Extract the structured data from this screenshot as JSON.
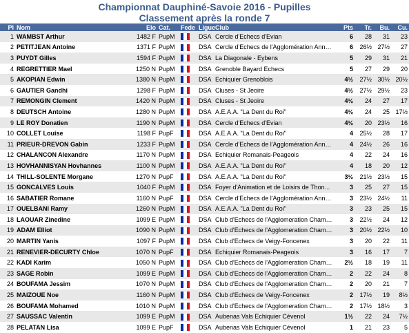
{
  "title": "Championnat Dauphiné-Savoie 2016 - Pupilles",
  "subtitle": "Classement après la ronde 7",
  "columns": [
    "Pl",
    "Nom",
    "Elo",
    "Cat.",
    "Fede",
    "Ligue",
    "Club",
    "Pts",
    "Tr.",
    "Bu.",
    "Cu."
  ],
  "flag_colors": [
    "#0a2a9e",
    "#ffffff",
    "#d9121f"
  ],
  "rows": [
    {
      "pl": "1",
      "nom": "WAMBST Arthur",
      "elo": "1482 F",
      "cat": "PupM",
      "ligue": "DSA",
      "club": "Cercle d'Echecs d'Evian",
      "pts": "6",
      "tr": "28",
      "bu": "31",
      "cu": "23"
    },
    {
      "pl": "2",
      "nom": "PETITJEAN Antoine",
      "elo": "1371 F",
      "cat": "PupM",
      "ligue": "DSA",
      "club": "Cercle d'Echecs de l'Agglomération Anné...",
      "pts": "6",
      "tr": "26½",
      "bu": "27½",
      "cu": "27"
    },
    {
      "pl": "3",
      "nom": "PUYDT Gilles",
      "elo": "1594 F",
      "cat": "PupM",
      "ligue": "DSA",
      "club": "La Diagonale - Eybens",
      "pts": "5",
      "tr": "29",
      "bu": "31",
      "cu": "21"
    },
    {
      "pl": "4",
      "nom": "REGRETTIER Mael",
      "elo": "1250 N",
      "cat": "PupM",
      "ligue": "DSA",
      "club": "Grenoble Bayard Echecs",
      "pts": "5",
      "tr": "27",
      "bu": "29",
      "cu": "20"
    },
    {
      "pl": "5",
      "nom": "AKOPIAN Edwin",
      "elo": "1380 N",
      "cat": "PupM",
      "ligue": "DSA",
      "club": "Echiquier Grenoblois",
      "pts": "4½",
      "tr": "27½",
      "bu": "30½",
      "cu": "20½"
    },
    {
      "pl": "6",
      "nom": "GAUTIER Gandhi",
      "elo": "1298 F",
      "cat": "PupM",
      "ligue": "DSA",
      "club": "Cluses - St Jeoire",
      "pts": "4½",
      "tr": "27½",
      "bu": "29½",
      "cu": "23"
    },
    {
      "pl": "7",
      "nom": "REMONGIN Clement",
      "elo": "1420 N",
      "cat": "PupM",
      "ligue": "DSA",
      "club": "Cluses - St Jeoire",
      "pts": "4½",
      "tr": "24",
      "bu": "27",
      "cu": "17"
    },
    {
      "pl": "8",
      "nom": "DEUTSCH Antoine",
      "elo": "1280 N",
      "cat": "PupM",
      "ligue": "DSA",
      "club": "A.E.A.A. \"La Dent du Roi\"",
      "pts": "4½",
      "tr": "24",
      "bu": "25",
      "cu": "17½"
    },
    {
      "pl": "9",
      "nom": "LE ROY Donatien",
      "elo": "1190 N",
      "cat": "PupM",
      "ligue": "DSA",
      "club": "Cercle d'Echecs d'Evian",
      "pts": "4½",
      "tr": "20",
      "bu": "23½",
      "cu": "16"
    },
    {
      "pl": "10",
      "nom": "COLLET Louise",
      "elo": "1198 F",
      "cat": "PupF",
      "ligue": "DSA",
      "club": "A.E.A.A. \"La Dent du Roi\"",
      "pts": "4",
      "tr": "25½",
      "bu": "28",
      "cu": "17"
    },
    {
      "pl": "11",
      "nom": "PRIEUR-DREVON Gabin",
      "elo": "1233 F",
      "cat": "PupM",
      "ligue": "DSA",
      "club": "Cercle d'Echecs de l'Agglomération Anné...",
      "pts": "4",
      "tr": "24½",
      "bu": "26",
      "cu": "16"
    },
    {
      "pl": "12",
      "nom": "CHALANCON Alexandre",
      "elo": "1170 N",
      "cat": "PupM",
      "ligue": "DSA",
      "club": "Echiquier Romanais-Peageois",
      "pts": "4",
      "tr": "22",
      "bu": "24",
      "cu": "16"
    },
    {
      "pl": "13",
      "nom": "HOVHANNISYAN Hovhannes",
      "elo": "1100 N",
      "cat": "PupM",
      "ligue": "DSA",
      "club": "A.E.A.A. \"La Dent du Roi\"",
      "pts": "4",
      "tr": "18",
      "bu": "20",
      "cu": "12"
    },
    {
      "pl": "14",
      "nom": "THILL-SOLENTE Morgane",
      "elo": "1270 N",
      "cat": "PupF",
      "ligue": "DSA",
      "club": "A.E.A.A. \"La Dent du Roi\"",
      "pts": "3½",
      "tr": "21½",
      "bu": "23½",
      "cu": "15"
    },
    {
      "pl": "15",
      "nom": "GONCALVES Louis",
      "elo": "1040 F",
      "cat": "PupM",
      "ligue": "DSA",
      "club": "Foyer d'Animation et de Loisirs de Thon...",
      "pts": "3",
      "tr": "25",
      "bu": "27",
      "cu": "15"
    },
    {
      "pl": "16",
      "nom": "SABATIER Romane",
      "elo": "1160 N",
      "cat": "PupF",
      "ligue": "DSA",
      "club": "Cercle d'Echecs de l'Agglomération Anné...",
      "pts": "3",
      "tr": "23½",
      "bu": "24½",
      "cu": "11"
    },
    {
      "pl": "17",
      "nom": "OUELBANI Ramy",
      "elo": "1260 N",
      "cat": "PupM",
      "ligue": "DSA",
      "club": "A.E.A.A. \"La Dent du Roi\"",
      "pts": "3",
      "tr": "23",
      "bu": "25",
      "cu": "15"
    },
    {
      "pl": "18",
      "nom": "LAOUAR Zinedine",
      "elo": "1099 E",
      "cat": "PupM",
      "ligue": "DSA",
      "club": "Club d'Echecs de l'Agglomeration Chambe...",
      "pts": "3",
      "tr": "22½",
      "bu": "24",
      "cu": "12"
    },
    {
      "pl": "19",
      "nom": "ADAM Elliot",
      "elo": "1090 N",
      "cat": "PupM",
      "ligue": "DSA",
      "club": "Club d'Echecs de l'Agglomeration Chambe...",
      "pts": "3",
      "tr": "20½",
      "bu": "22½",
      "cu": "10"
    },
    {
      "pl": "20",
      "nom": "MARTIN Yanis",
      "elo": "1097 F",
      "cat": "PupM",
      "ligue": "DSA",
      "club": "Club d'Echecs de Veigy-Foncenex",
      "pts": "3",
      "tr": "20",
      "bu": "22",
      "cu": "11"
    },
    {
      "pl": "21",
      "nom": "RENEVIER-DECURTY Chloe",
      "elo": "1070 N",
      "cat": "PupF",
      "ligue": "DSA",
      "club": "Echiquier Romanais-Peageois",
      "pts": "3",
      "tr": "16",
      "bu": "17",
      "cu": "7"
    },
    {
      "pl": "22",
      "nom": "KADI Karim",
      "elo": "1050 N",
      "cat": "PupM",
      "ligue": "DSA",
      "club": "Club d'Echecs de l'Agglomeration Chambe...",
      "pts": "2½",
      "tr": "18",
      "bu": "19",
      "cu": "11"
    },
    {
      "pl": "23",
      "nom": "SAGE Robin",
      "elo": "1099 E",
      "cat": "PupM",
      "ligue": "DSA",
      "club": "Club d'Echecs de l'Agglomeration Chambe...",
      "pts": "2",
      "tr": "22",
      "bu": "24",
      "cu": "8"
    },
    {
      "pl": "24",
      "nom": "BOUFAMA Jessim",
      "elo": "1070 N",
      "cat": "PupM",
      "ligue": "DSA",
      "club": "Club d'Echecs de l'Agglomeration Chambe...",
      "pts": "2",
      "tr": "20",
      "bu": "21",
      "cu": "7"
    },
    {
      "pl": "25",
      "nom": "MAIZOUE Noe",
      "elo": "1160 N",
      "cat": "PupM",
      "ligue": "DSA",
      "club": "Club d'Echecs de Veigy-Foncenex",
      "pts": "2",
      "tr": "17½",
      "bu": "19",
      "cu": "8½"
    },
    {
      "pl": "26",
      "nom": "BOUFAMA Mohamed",
      "elo": "1010 N",
      "cat": "PupM",
      "ligue": "DSA",
      "club": "Club d'Echecs de l'Agglomeration Chambe...",
      "pts": "2",
      "tr": "17½",
      "bu": "18½",
      "cu": "3"
    },
    {
      "pl": "27",
      "nom": "SAUSSAC Valentin",
      "elo": "1099 E",
      "cat": "PupM",
      "ligue": "DSA",
      "club": "Aubenas Vals Echiquier Cévenol",
      "pts": "1½",
      "tr": "22",
      "bu": "24",
      "cu": "7½"
    },
    {
      "pl": "28",
      "nom": "PELATAN Lisa",
      "elo": "1099 E",
      "cat": "PupF",
      "ligue": "DSA",
      "club": "Aubenas Vals Echiquier Cévenol",
      "pts": "1",
      "tr": "21",
      "bu": "23",
      "cu": "5"
    }
  ]
}
